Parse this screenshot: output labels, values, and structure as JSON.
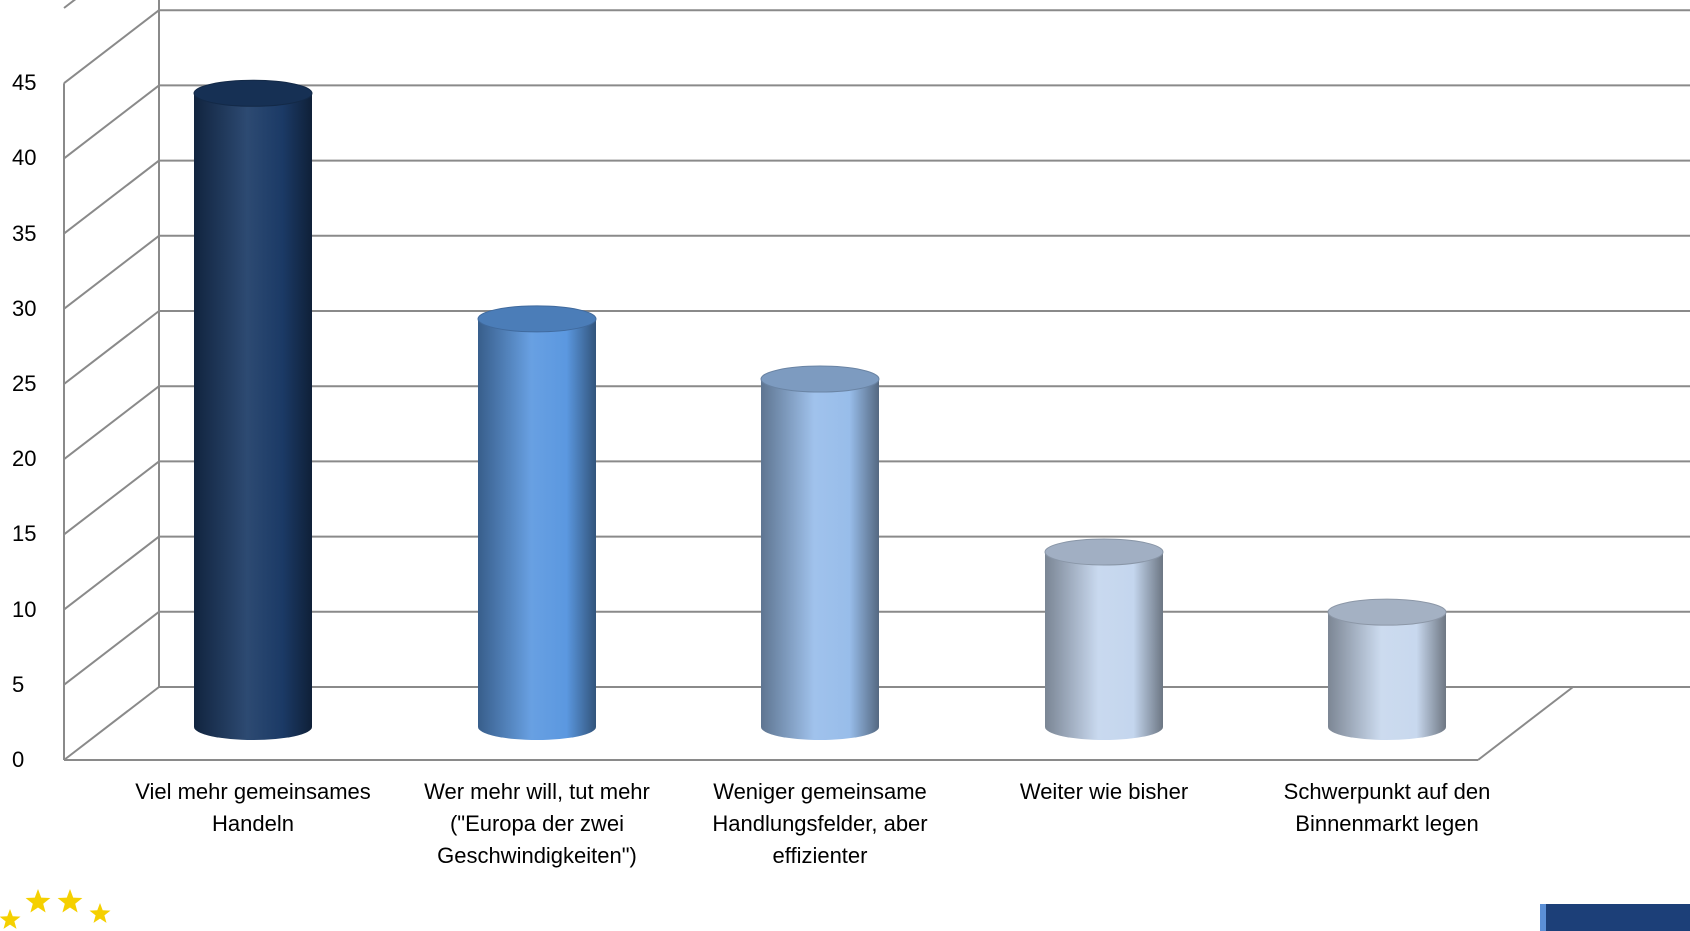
{
  "chart_data": {
    "type": "bar",
    "style": "3d-cylinder",
    "categories": [
      [
        "Viel mehr gemeinsames",
        "Handeln"
      ],
      [
        "Wer mehr will, tut mehr",
        "(\"Europa der zwei",
        "Geschwindigkeiten\")"
      ],
      [
        "Weniger gemeinsame",
        "Handlungsfelder, aber",
        "effizienter"
      ],
      [
        "Weiter wie bisher"
      ],
      [
        "Schwerpunkt auf den",
        "Binnenmarkt legen"
      ]
    ],
    "values": [
      43,
      28,
      24,
      12.5,
      8.5
    ],
    "ylim": [
      0,
      50
    ],
    "yticks": [
      0,
      5,
      10,
      15,
      20,
      25,
      30,
      35,
      40,
      45
    ],
    "grid": true,
    "colors": [
      "#1b3a66",
      "#5b98e0",
      "#98bdea",
      "#c4d6ee",
      "#c8d8ee"
    ],
    "title": "",
    "xlabel": "",
    "ylabel": ""
  },
  "decorations": {
    "bottom_left": "eu-stars-icon",
    "bottom_right": "brand-bar",
    "star_color": "#f5d000",
    "brand_color": "#1c3f78"
  }
}
